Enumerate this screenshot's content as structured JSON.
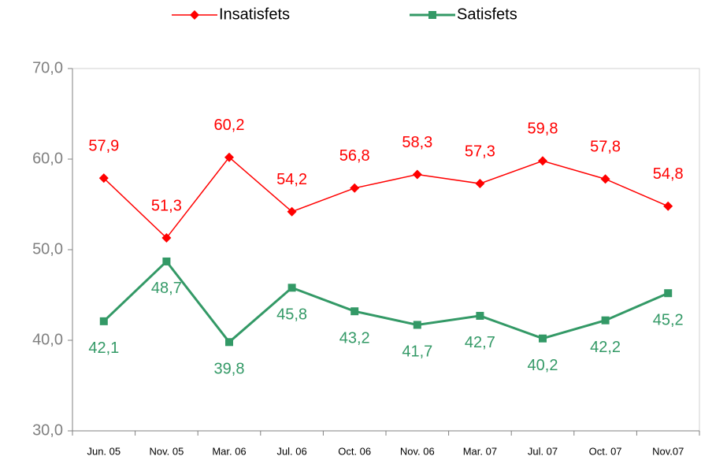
{
  "chart_data": {
    "type": "line",
    "categories": [
      "Jun. 05",
      "Nov. 05",
      "Mar. 06",
      "Jul. 06",
      "Oct. 06",
      "Nov. 06",
      "Mar. 07",
      "Jul. 07",
      "Oct. 07",
      "Nov.07"
    ],
    "series": [
      {
        "name": "Insatisfets",
        "color": "#ff0000",
        "marker": "diamond",
        "values": [
          57.9,
          51.3,
          60.2,
          54.2,
          56.8,
          58.3,
          57.3,
          59.8,
          57.8,
          54.8
        ],
        "value_labels": [
          "57,9",
          "51,3",
          "60,2",
          "54,2",
          "56,8",
          "58,3",
          "57,3",
          "59,8",
          "57,8",
          "54,8"
        ]
      },
      {
        "name": "Satisfets",
        "color": "#339966",
        "marker": "square",
        "values": [
          42.1,
          48.7,
          39.8,
          45.8,
          43.2,
          41.7,
          42.7,
          40.2,
          42.2,
          45.2
        ],
        "value_labels": [
          "42,1",
          "48,7",
          "39,8",
          "45,8",
          "43,2",
          "41,7",
          "42,7",
          "40,2",
          "42,2",
          "45,2"
        ]
      }
    ],
    "ylim": [
      30,
      70
    ],
    "yticks": [
      {
        "value": 30,
        "label": "30,0"
      },
      {
        "value": 40,
        "label": "40,0"
      },
      {
        "value": 50,
        "label": "50,0"
      },
      {
        "value": 60,
        "label": "60,0"
      },
      {
        "value": 70,
        "label": "70,0"
      }
    ],
    "legend": "top",
    "grid": false
  }
}
